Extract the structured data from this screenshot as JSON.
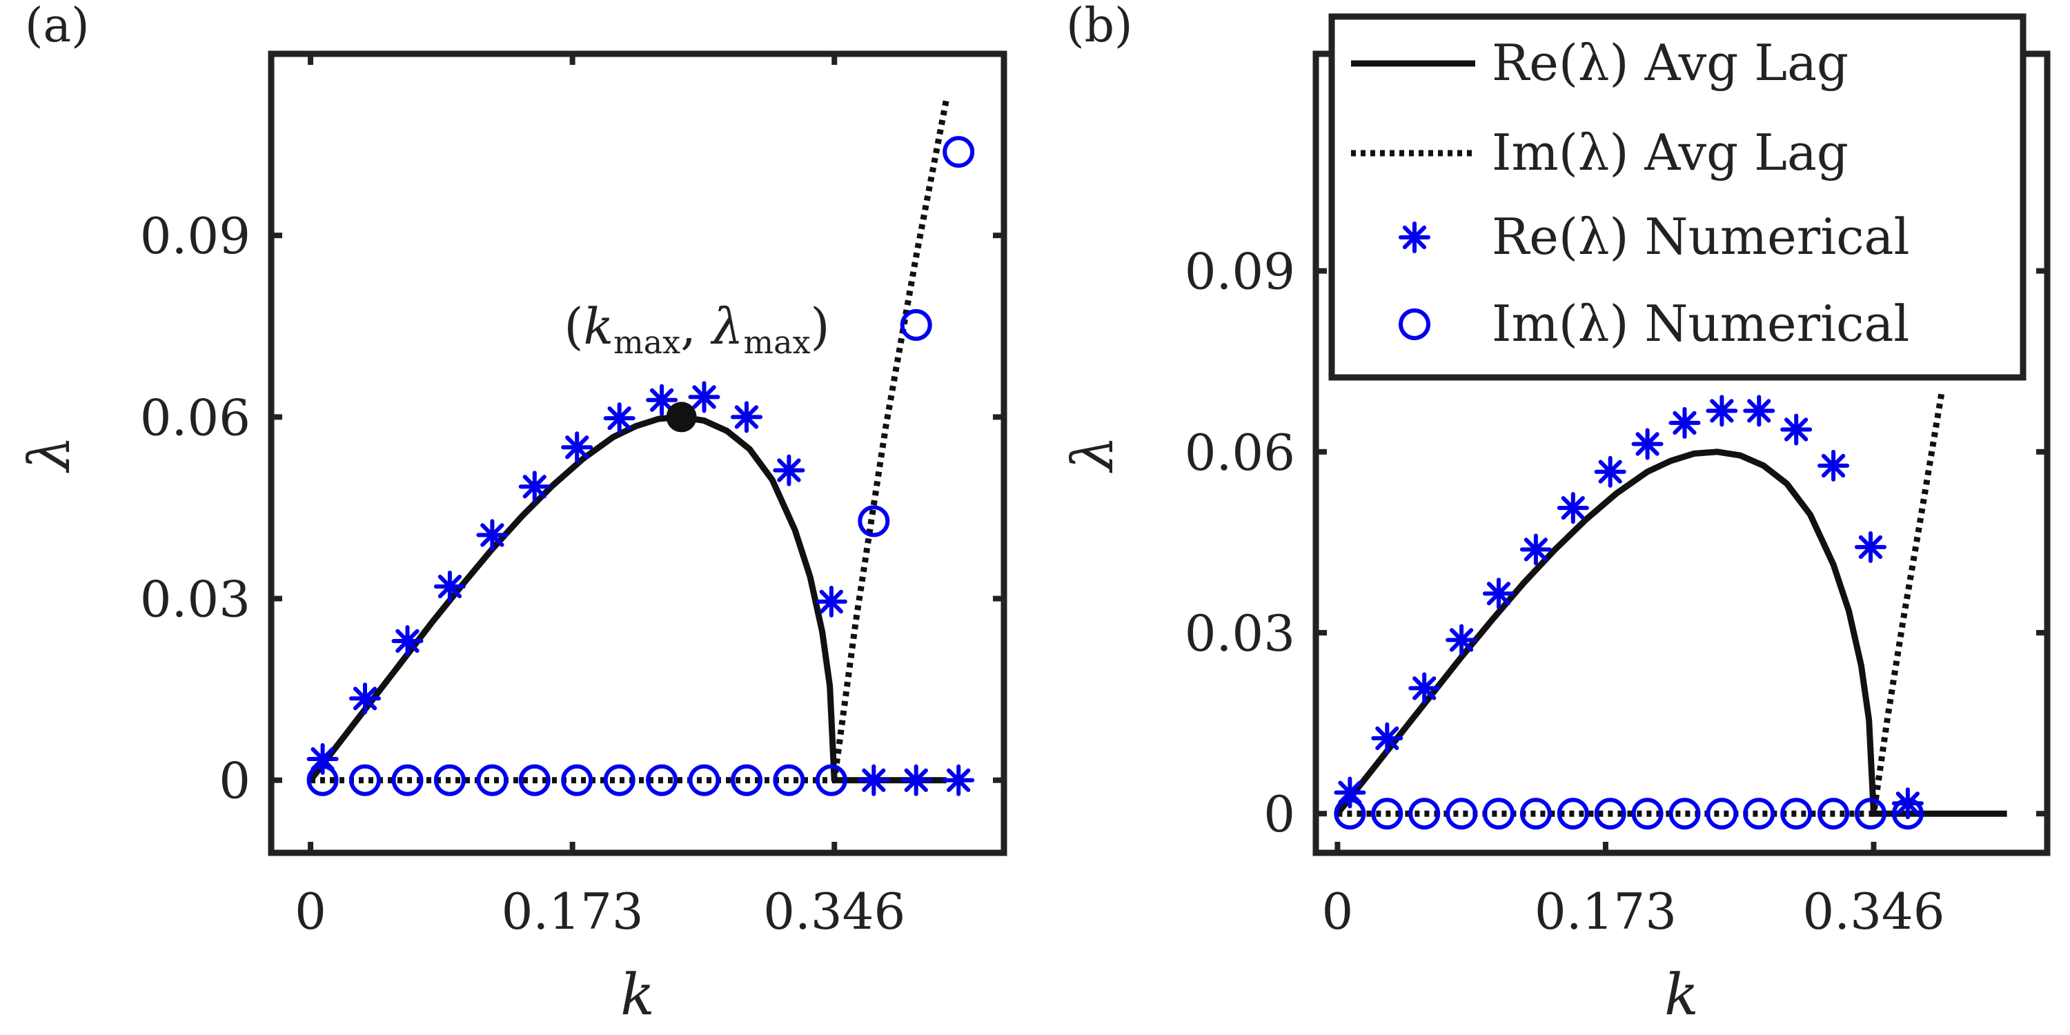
{
  "figure": {
    "legend": {
      "entries": [
        {
          "label": "Re(λ) Avg Lag",
          "style": "solid"
        },
        {
          "label": "Im(λ) Avg Lag",
          "style": "dotted"
        },
        {
          "label": "Re(λ) Numerical",
          "style": "asterisk"
        },
        {
          "label": "Im(λ) Numerical",
          "style": "circle"
        }
      ]
    },
    "colors": {
      "axis": "#222222",
      "theory": "#111111",
      "numerical": "#0000ee"
    }
  },
  "chart_data": [
    {
      "panel_label": "(a)",
      "type": "line",
      "title": "",
      "xlabel": "k",
      "ylabel": "λ",
      "xlim": [
        -0.026,
        0.458
      ],
      "ylim": [
        -0.012,
        0.12
      ],
      "xticks": [
        0,
        0.173,
        0.346
      ],
      "xtick_labels": [
        "0",
        "0.173",
        "0.346"
      ],
      "yticks": [
        0,
        0.03,
        0.06,
        0.09
      ],
      "ytick_labels": [
        "0",
        "0.03",
        "0.06",
        "0.09"
      ],
      "annotation": {
        "text": "(k_max, λ_max)",
        "x": 0.245,
        "y": 0.06
      },
      "series": [
        {
          "name": "Re(λ) Avg Lag",
          "style": "solid",
          "x": [
            0.0,
            0.02,
            0.04,
            0.06,
            0.08,
            0.1,
            0.12,
            0.14,
            0.16,
            0.18,
            0.2,
            0.215,
            0.23,
            0.245,
            0.26,
            0.275,
            0.29,
            0.305,
            0.32,
            0.33,
            0.338,
            0.343,
            0.346,
            0.36,
            0.38,
            0.4,
            0.42
          ],
          "y": [
            0.0,
            0.0065,
            0.013,
            0.0195,
            0.026,
            0.0322,
            0.0382,
            0.0437,
            0.0487,
            0.0531,
            0.0567,
            0.0585,
            0.0597,
            0.06,
            0.0594,
            0.0577,
            0.0547,
            0.0496,
            0.0413,
            0.0336,
            0.0245,
            0.0155,
            0.0,
            0.0,
            0.0,
            0.0,
            0.0
          ]
        },
        {
          "name": "Im(λ) Avg Lag",
          "style": "dotted",
          "x": [
            0.0,
            0.05,
            0.1,
            0.15,
            0.2,
            0.25,
            0.3,
            0.346,
            0.36,
            0.38,
            0.4,
            0.42
          ],
          "y": [
            0.0,
            0.0,
            0.0,
            0.0,
            0.0,
            0.0,
            0.0,
            0.0,
            0.026,
            0.0585,
            0.0865,
            0.1125
          ]
        },
        {
          "name": "Re(λ) Numerical",
          "style": "asterisk",
          "x": [
            0.008,
            0.036,
            0.064,
            0.092,
            0.12,
            0.148,
            0.176,
            0.204,
            0.232,
            0.26,
            0.288,
            0.316,
            0.344,
            0.372,
            0.4,
            0.428
          ],
          "y": [
            0.0035,
            0.0135,
            0.023,
            0.032,
            0.0405,
            0.0485,
            0.055,
            0.0598,
            0.0628,
            0.0633,
            0.06,
            0.0512,
            0.0295,
            0.0,
            0.0,
            0.0
          ]
        },
        {
          "name": "Im(λ) Numerical",
          "style": "circle",
          "x": [
            0.008,
            0.036,
            0.064,
            0.092,
            0.12,
            0.148,
            0.176,
            0.204,
            0.232,
            0.26,
            0.288,
            0.316,
            0.344,
            0.372,
            0.4,
            0.428
          ],
          "y": [
            0.0,
            0.0,
            0.0,
            0.0,
            0.0,
            0.0,
            0.0,
            0.0,
            0.0,
            0.0,
            0.0,
            0.0,
            0.0,
            0.0428,
            0.0752,
            0.1038
          ]
        }
      ],
      "highlight_point": {
        "x": 0.245,
        "y": 0.06
      }
    },
    {
      "panel_label": "(b)",
      "type": "line",
      "title": "",
      "xlabel": "k",
      "ylabel": "λ",
      "xlim": [
        -0.014,
        0.458
      ],
      "ylim": [
        -0.0065,
        0.126
      ],
      "xticks": [
        0,
        0.173,
        0.346
      ],
      "xtick_labels": [
        "0",
        "0.173",
        "0.346"
      ],
      "yticks": [
        0,
        0.03,
        0.06,
        0.09
      ],
      "ytick_labels": [
        "0",
        "0.03",
        "0.06",
        "0.09"
      ],
      "series": [
        {
          "name": "Re(λ) Avg Lag",
          "style": "solid",
          "x": [
            0.0,
            0.02,
            0.04,
            0.06,
            0.08,
            0.1,
            0.12,
            0.14,
            0.16,
            0.18,
            0.2,
            0.215,
            0.23,
            0.245,
            0.26,
            0.275,
            0.29,
            0.305,
            0.32,
            0.33,
            0.338,
            0.343,
            0.346,
            0.36,
            0.38,
            0.4,
            0.432
          ],
          "y": [
            0.0,
            0.0065,
            0.013,
            0.0195,
            0.026,
            0.0322,
            0.0382,
            0.0437,
            0.0487,
            0.0531,
            0.0567,
            0.0585,
            0.0597,
            0.06,
            0.0594,
            0.0577,
            0.0547,
            0.0496,
            0.0413,
            0.0336,
            0.0245,
            0.0155,
            0.0,
            0.0,
            0.0,
            0.0,
            0.0
          ]
        },
        {
          "name": "Im(λ) Avg Lag",
          "style": "dotted",
          "x": [
            0.0,
            0.05,
            0.1,
            0.15,
            0.2,
            0.25,
            0.3,
            0.346,
            0.355,
            0.365,
            0.375,
            0.39
          ],
          "y": [
            0.0,
            0.0,
            0.0,
            0.0,
            0.0,
            0.0,
            0.0,
            0.0,
            0.016,
            0.032,
            0.047,
            0.07
          ]
        },
        {
          "name": "Re(λ) Numerical",
          "style": "asterisk",
          "x": [
            0.008,
            0.032,
            0.056,
            0.08,
            0.104,
            0.128,
            0.152,
            0.176,
            0.2,
            0.224,
            0.248,
            0.272,
            0.296,
            0.32,
            0.344,
            0.368
          ],
          "y": [
            0.0035,
            0.0125,
            0.0208,
            0.0288,
            0.0365,
            0.0438,
            0.0507,
            0.0567,
            0.0613,
            0.0648,
            0.0668,
            0.0668,
            0.0637,
            0.0577,
            0.0442,
            0.0017
          ]
        },
        {
          "name": "Im(λ) Numerical",
          "style": "circle",
          "x": [
            0.008,
            0.032,
            0.056,
            0.08,
            0.104,
            0.128,
            0.152,
            0.176,
            0.2,
            0.224,
            0.248,
            0.272,
            0.296,
            0.32,
            0.344,
            0.368
          ],
          "y": [
            0.0,
            0.0,
            0.0,
            0.0,
            0.0,
            0.0,
            0.0,
            0.0,
            0.0,
            0.0,
            0.0,
            0.0,
            0.0,
            0.0,
            0.0,
            0.0
          ]
        }
      ]
    }
  ]
}
